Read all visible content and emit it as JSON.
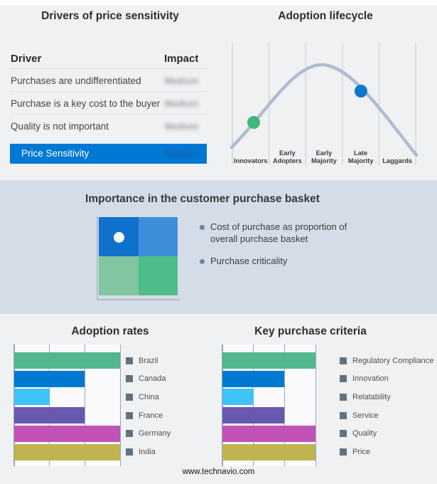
{
  "footer": {
    "website": "www.technavio.com"
  },
  "drivers_panel": {
    "title": "Drivers of price sensitivity",
    "columns": [
      "Driver",
      "Impact"
    ],
    "rows": [
      {
        "driver": "Purchases are undifferentiated",
        "impact": "Medium",
        "impact_blurred": true
      },
      {
        "driver": "Purchase is a key cost to the buyer",
        "impact": "Medium",
        "impact_blurred": true
      },
      {
        "driver": "Quality is not important",
        "impact": "Medium",
        "impact_blurred": true
      }
    ],
    "highlight_row": {
      "driver": "Price Sensitivity",
      "impact": "Medium",
      "impact_blurred": true
    },
    "highlight_color": "#0078d4"
  },
  "lifecycle_panel": {
    "title": "Adoption lifecycle",
    "stages": [
      "Innovators",
      "Early Adopters",
      "Early Majority",
      "Late Majority",
      "Laggards"
    ],
    "curve_color": "#aebcd0",
    "markers": [
      {
        "stage": "Innovators",
        "color": "#41b87e"
      },
      {
        "stage": "Late Majority",
        "color": "#0b78d0"
      }
    ]
  },
  "basket_panel": {
    "title": "Importance in the customer purchase basket",
    "bullets": [
      "Cost of purchase as proportion of overall purchase basket",
      "Purchase criticality"
    ],
    "quadrant_colors": {
      "top_left": "#0e71cb",
      "top_right": "#3f8edc",
      "bottom_left": "#82c5a1",
      "bottom_right": "#4fbd89"
    },
    "band_color": "#d4dde7"
  },
  "chart_data": [
    {
      "type": "bar",
      "orientation": "horizontal",
      "title": "Adoption rates",
      "categories": [
        "Brazil",
        "Canada",
        "China",
        "France",
        "Germany",
        "India"
      ],
      "values": [
        3,
        2,
        1,
        2,
        3,
        3
      ],
      "xlim": [
        0,
        3
      ],
      "grid": true,
      "legend_position": "right",
      "colors": [
        "#52b78c",
        "#0079d2",
        "#3fc4f5",
        "#6a57af",
        "#c253b6",
        "#c0b451"
      ]
    },
    {
      "type": "bar",
      "orientation": "horizontal",
      "title": "Key purchase criteria",
      "categories": [
        "Regulatory Compliance",
        "Innovation",
        "Relatability",
        "Service",
        "Quality",
        "Price"
      ],
      "values": [
        3,
        2,
        1,
        2,
        3,
        3
      ],
      "xlim": [
        0,
        3
      ],
      "grid": true,
      "legend_position": "right",
      "colors": [
        "#52b78c",
        "#0079d2",
        "#3fc4f5",
        "#6a57af",
        "#c253b6",
        "#c0b451"
      ]
    }
  ]
}
